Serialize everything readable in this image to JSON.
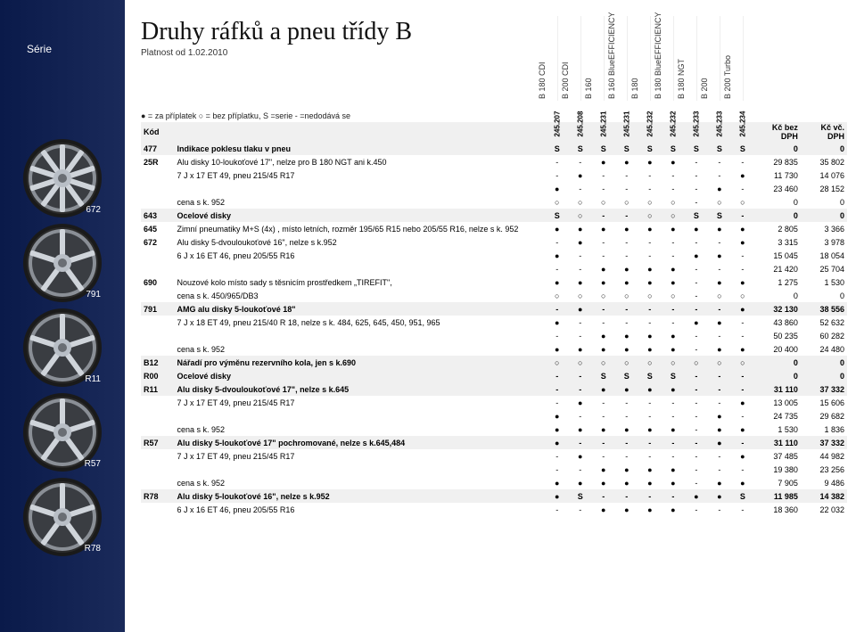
{
  "left": {
    "series_label": "Série",
    "wheel_codes": [
      "672",
      "791",
      "R11",
      "R57",
      "R78"
    ]
  },
  "header": {
    "title": "Druhy ráfků a pneu třídy B",
    "subtitle": "Platnost od 1.02.2010",
    "models": [
      "B 180 CDI",
      "B 200 CDI",
      "B 160",
      "B 160 BlueEFFICIENCY",
      "B 180",
      "B 180 BlueEFFICIENCY",
      "B 180 NGT",
      "B 200",
      "B 200 Turbo"
    ],
    "legend": "● = za příplatek   ○ = bez příplatku, S =serie   - =nedodává se",
    "kod_label": "Kód",
    "price1_label": "Kč bez DPH",
    "price2_label": "Kč vč. DPH",
    "codes": [
      "245.207",
      "245.208",
      "245.231",
      "245.231",
      "245.232",
      "245.232",
      "245.233",
      "245.233",
      "245.234"
    ]
  },
  "rows": [
    {
      "code": "477",
      "desc": "Indikace poklesu tlaku v pneu",
      "m": [
        "S",
        "S",
        "S",
        "S",
        "S",
        "S",
        "S",
        "S",
        "S"
      ],
      "p1": "0",
      "p2": "0",
      "h": true
    },
    {
      "code": "25R",
      "desc": "Alu disky 10-loukoťové 17\", nelze pro B 180 NGT ani k.450",
      "m": [
        "-",
        "-",
        "●",
        "●",
        "●",
        "●",
        "-",
        "-",
        "-"
      ],
      "p1": "29 835",
      "p2": "35 802"
    },
    {
      "code": "",
      "desc": "7 J x 17 ET 49, pneu 215/45 R17",
      "m": [
        "-",
        "●",
        "-",
        "-",
        "-",
        "-",
        "-",
        "-",
        "●"
      ],
      "p1": "11 730",
      "p2": "14 076"
    },
    {
      "code": "",
      "desc": "",
      "m": [
        "●",
        "-",
        "-",
        "-",
        "-",
        "-",
        "-",
        "●",
        "-"
      ],
      "p1": "23 460",
      "p2": "28 152"
    },
    {
      "code": "",
      "desc": "cena s k. 952",
      "m": [
        "○",
        "○",
        "○",
        "○",
        "○",
        "○",
        "-",
        "○",
        "○"
      ],
      "p1": "0",
      "p2": "0"
    },
    {
      "code": "643",
      "desc": "Ocelové disky",
      "m": [
        "S",
        "○",
        "-",
        "-",
        "○",
        "○",
        "S",
        "S",
        "-"
      ],
      "p1": "0",
      "p2": "0",
      "h": true
    },
    {
      "code": "645",
      "desc": "Zimní pneumatiky M+S (4x) , místo letních, rozměr 195/65 R15 nebo 205/55 R16, nelze s k. 952",
      "m": [
        "●",
        "●",
        "●",
        "●",
        "●",
        "●",
        "●",
        "●",
        "●"
      ],
      "p1": "2 805",
      "p2": "3 366"
    },
    {
      "code": "672",
      "desc": "Alu disky 5-dvouloukoťové 16\", nelze s k.952",
      "m": [
        "-",
        "●",
        "-",
        "-",
        "-",
        "-",
        "-",
        "-",
        "●"
      ],
      "p1": "3 315",
      "p2": "3 978"
    },
    {
      "code": "",
      "desc": "6 J x 16 ET 46, pneu 205/55 R16",
      "m": [
        "●",
        "-",
        "-",
        "-",
        "-",
        "-",
        "●",
        "●",
        "-"
      ],
      "p1": "15 045",
      "p2": "18 054"
    },
    {
      "code": "",
      "desc": "",
      "m": [
        "-",
        "-",
        "●",
        "●",
        "●",
        "●",
        "-",
        "-",
        "-"
      ],
      "p1": "21 420",
      "p2": "25 704"
    },
    {
      "code": "690",
      "desc": "Nouzové kolo místo sady s těsnicím prostředkem „TIREFIT\",",
      "m": [
        "●",
        "●",
        "●",
        "●",
        "●",
        "●",
        "-",
        "●",
        "●"
      ],
      "p1": "1 275",
      "p2": "1 530"
    },
    {
      "code": "",
      "desc": "cena s k. 450/965/DB3",
      "m": [
        "○",
        "○",
        "○",
        "○",
        "○",
        "○",
        "-",
        "○",
        "○"
      ],
      "p1": "0",
      "p2": "0"
    },
    {
      "code": "791",
      "desc": "AMG alu disky 5-loukoťové 18\"",
      "m": [
        "-",
        "●",
        "-",
        "-",
        "-",
        "-",
        "-",
        "-",
        "●"
      ],
      "p1": "32 130",
      "p2": "38 556",
      "h": true
    },
    {
      "code": "",
      "desc": "7 J x 18 ET 49, pneu 215/40 R 18, nelze s k. 484, 625, 645, 450, 951, 965",
      "m": [
        "●",
        "-",
        "-",
        "-",
        "-",
        "-",
        "●",
        "●",
        "-"
      ],
      "p1": "43 860",
      "p2": "52 632"
    },
    {
      "code": "",
      "desc": "",
      "m": [
        "-",
        "-",
        "●",
        "●",
        "●",
        "●",
        "-",
        "-",
        "-"
      ],
      "p1": "50 235",
      "p2": "60 282"
    },
    {
      "code": "",
      "desc": "cena s k. 952",
      "m": [
        "●",
        "●",
        "●",
        "●",
        "●",
        "●",
        "-",
        "●",
        "●"
      ],
      "p1": "20 400",
      "p2": "24 480"
    },
    {
      "code": "B12",
      "desc": "Nářadí pro výměnu rezervního kola, jen s k.690",
      "m": [
        "○",
        "○",
        "○",
        "○",
        "○",
        "○",
        "○",
        "○",
        "○"
      ],
      "p1": "0",
      "p2": "0",
      "h": true
    },
    {
      "code": "R00",
      "desc": "Ocelové disky",
      "m": [
        "-",
        "-",
        "S",
        "S",
        "S",
        "S",
        "-",
        "-",
        "-"
      ],
      "p1": "0",
      "p2": "0",
      "h": true
    },
    {
      "code": "R11",
      "desc": "Alu disky 5-dvouloukoťové 17\", nelze s k.645",
      "m": [
        "-",
        "-",
        "●",
        "●",
        "●",
        "●",
        "-",
        "-",
        "-"
      ],
      "p1": "31 110",
      "p2": "37 332",
      "h": true
    },
    {
      "code": "",
      "desc": "7 J x 17 ET 49, pneu 215/45 R17",
      "m": [
        "-",
        "●",
        "-",
        "-",
        "-",
        "-",
        "-",
        "-",
        "●"
      ],
      "p1": "13 005",
      "p2": "15 606"
    },
    {
      "code": "",
      "desc": "",
      "m": [
        "●",
        "-",
        "-",
        "-",
        "-",
        "-",
        "-",
        "●",
        "-"
      ],
      "p1": "24 735",
      "p2": "29 682"
    },
    {
      "code": "",
      "desc": "cena s k. 952",
      "m": [
        "●",
        "●",
        "●",
        "●",
        "●",
        "●",
        "-",
        "●",
        "●"
      ],
      "p1": "1 530",
      "p2": "1 836"
    },
    {
      "code": "R57",
      "desc": "Alu disky 5-loukoťové 17\" pochromované, nelze s k.645,484",
      "m": [
        "●",
        "-",
        "-",
        "-",
        "-",
        "-",
        "-",
        "●",
        "-"
      ],
      "p1": "31 110",
      "p2": "37 332",
      "h": true
    },
    {
      "code": "",
      "desc": "7 J x 17 ET 49, pneu 215/45 R17",
      "m": [
        "-",
        "●",
        "-",
        "-",
        "-",
        "-",
        "-",
        "-",
        "●"
      ],
      "p1": "37 485",
      "p2": "44 982"
    },
    {
      "code": "",
      "desc": "",
      "m": [
        "-",
        "-",
        "●",
        "●",
        "●",
        "●",
        "-",
        "-",
        "-"
      ],
      "p1": "19 380",
      "p2": "23 256"
    },
    {
      "code": "",
      "desc": "cena s k. 952",
      "m": [
        "●",
        "●",
        "●",
        "●",
        "●",
        "●",
        "-",
        "●",
        "●"
      ],
      "p1": "7 905",
      "p2": "9 486"
    },
    {
      "code": "R78",
      "desc": "Alu disky 5-loukoťové 16\", nelze s k.952",
      "m": [
        "●",
        "S",
        "-",
        "-",
        "-",
        "-",
        "●",
        "●",
        "S"
      ],
      "p1": "11 985",
      "p2": "14 382",
      "h": true
    },
    {
      "code": "",
      "desc": "6 J x 16 ET 46, pneu 205/55 R16",
      "m": [
        "-",
        "-",
        "●",
        "●",
        "●",
        "●",
        "-",
        "-",
        "-"
      ],
      "p1": "18 360",
      "p2": "22 032"
    }
  ],
  "glyph": {
    "●": "●",
    "○": "○",
    "-": "-",
    "S": "S"
  }
}
